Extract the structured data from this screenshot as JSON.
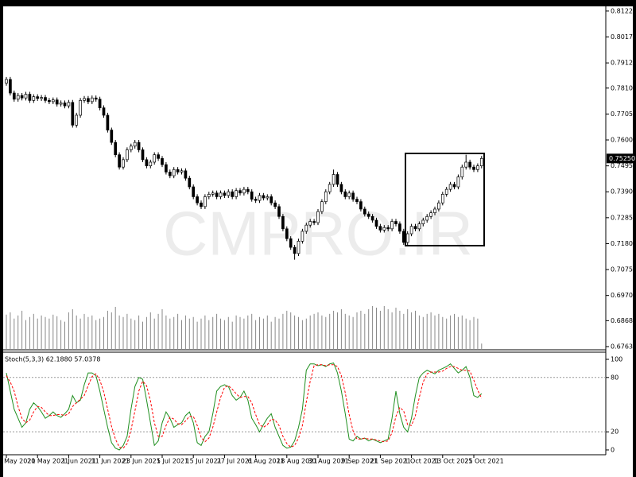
{
  "chart_data": [
    {
      "type": "candlestick",
      "watermark": "CMPRO.IR",
      "price_label": "0.75250",
      "up_color": "#ffffff",
      "down_color": "#000000",
      "volume_color": "#888888",
      "categories": [
        "0 May 2021",
        null,
        null,
        null,
        null,
        null,
        null,
        null,
        "20 May 2021",
        null,
        null,
        null,
        null,
        null,
        null,
        null,
        "1 Jun 2021",
        null,
        null,
        null,
        null,
        null,
        null,
        null,
        "11 Jun 2021",
        null,
        null,
        null,
        null,
        null,
        null,
        null,
        "23 Jun 2021",
        null,
        null,
        null,
        null,
        null,
        null,
        null,
        "5 Jul 2021",
        null,
        null,
        null,
        null,
        null,
        null,
        null,
        "15 Jul 2021",
        null,
        null,
        null,
        null,
        null,
        null,
        null,
        "27 Jul 2021",
        null,
        null,
        null,
        null,
        null,
        null,
        null,
        "6 Aug 2021",
        null,
        null,
        null,
        null,
        null,
        null,
        null,
        "18 Aug 2021",
        null,
        null,
        null,
        null,
        null,
        null,
        null,
        "30 Aug 2021",
        null,
        null,
        null,
        null,
        null,
        null,
        null,
        "9 Sep 2021",
        null,
        null,
        null,
        null,
        null,
        null,
        null,
        "21 Sep 2021",
        null,
        null,
        null,
        null,
        null,
        null,
        null,
        "1 Oct 2021",
        null,
        null,
        null,
        null,
        null,
        null,
        null,
        "13 Oct 2021",
        null,
        null,
        null,
        null,
        null,
        null,
        null,
        "25 Oct 2021",
        null,
        null
      ],
      "open": [
        0.783,
        0.7845,
        0.779,
        0.7765,
        0.778,
        0.777,
        0.7785,
        0.776,
        0.7775,
        0.7768,
        0.7772,
        0.776,
        0.7755,
        0.7762,
        0.7745,
        0.775,
        0.7738,
        0.7752,
        0.766,
        0.77,
        0.776,
        0.7768,
        0.7755,
        0.777,
        0.7765,
        0.773,
        0.77,
        0.764,
        0.759,
        0.754,
        0.749,
        0.752,
        0.756,
        0.7575,
        0.759,
        0.756,
        0.752,
        0.7495,
        0.751,
        0.754,
        0.7525,
        0.75,
        0.747,
        0.7455,
        0.748,
        0.747,
        0.7475,
        0.7445,
        0.741,
        0.737,
        0.7345,
        0.733,
        0.737,
        0.738,
        0.7385,
        0.737,
        0.7385,
        0.7375,
        0.739,
        0.737,
        0.7395,
        0.7385,
        0.74,
        0.739,
        0.736,
        0.7355,
        0.7375,
        0.7365,
        0.737,
        0.7345,
        0.733,
        0.729,
        0.724,
        0.72,
        0.7165,
        0.714,
        0.719,
        0.723,
        0.7255,
        0.727,
        0.7265,
        0.731,
        0.735,
        0.739,
        0.742,
        0.746,
        0.742,
        0.739,
        0.737,
        0.7385,
        0.736,
        0.735,
        0.732,
        0.73,
        0.729,
        0.7275,
        0.725,
        0.7235,
        0.7245,
        0.724,
        0.727,
        0.726,
        0.723,
        0.7185,
        0.722,
        0.725,
        0.724,
        0.726,
        0.7275,
        0.729,
        0.7305,
        0.732,
        0.7345,
        0.738,
        0.74,
        0.742,
        0.741,
        0.745,
        0.749,
        0.751,
        0.749,
        0.748,
        0.7495
      ],
      "high": [
        0.7855,
        0.7855,
        0.78,
        0.779,
        0.779,
        0.7795,
        0.7795,
        0.7785,
        0.7785,
        0.7782,
        0.7782,
        0.777,
        0.7772,
        0.7772,
        0.776,
        0.776,
        0.7762,
        0.7762,
        0.771,
        0.777,
        0.7778,
        0.7778,
        0.778,
        0.778,
        0.7775,
        0.774,
        0.771,
        0.765,
        0.76,
        0.755,
        0.753,
        0.757,
        0.7585,
        0.76,
        0.76,
        0.757,
        0.753,
        0.752,
        0.755,
        0.755,
        0.7535,
        0.751,
        0.748,
        0.749,
        0.749,
        0.7485,
        0.7485,
        0.7455,
        0.742,
        0.738,
        0.7355,
        0.738,
        0.739,
        0.7395,
        0.7395,
        0.7395,
        0.7395,
        0.74,
        0.74,
        0.7405,
        0.7405,
        0.741,
        0.741,
        0.74,
        0.737,
        0.7385,
        0.7385,
        0.738,
        0.738,
        0.7355,
        0.734,
        0.73,
        0.725,
        0.721,
        0.7175,
        0.72,
        0.724,
        0.7265,
        0.728,
        0.728,
        0.732,
        0.736,
        0.74,
        0.743,
        0.748,
        0.747,
        0.743,
        0.74,
        0.7395,
        0.7395,
        0.737,
        0.736,
        0.733,
        0.731,
        0.73,
        0.7285,
        0.726,
        0.7255,
        0.7255,
        0.728,
        0.728,
        0.727,
        0.724,
        0.723,
        0.726,
        0.726,
        0.727,
        0.7285,
        0.73,
        0.7315,
        0.733,
        0.7355,
        0.739,
        0.741,
        0.743,
        0.743,
        0.746,
        0.75,
        0.754,
        0.752,
        0.75,
        0.7505,
        0.7535
      ],
      "low": [
        0.782,
        0.778,
        0.7755,
        0.7755,
        0.776,
        0.776,
        0.775,
        0.775,
        0.7758,
        0.7758,
        0.775,
        0.7745,
        0.7745,
        0.7735,
        0.7735,
        0.7728,
        0.7728,
        0.765,
        0.765,
        0.769,
        0.775,
        0.7745,
        0.7745,
        0.7755,
        0.772,
        0.769,
        0.763,
        0.758,
        0.753,
        0.748,
        0.748,
        0.751,
        0.755,
        0.7565,
        0.755,
        0.751,
        0.7485,
        0.7485,
        0.75,
        0.7515,
        0.749,
        0.746,
        0.7445,
        0.7445,
        0.746,
        0.746,
        0.7435,
        0.74,
        0.736,
        0.7335,
        0.732,
        0.732,
        0.736,
        0.737,
        0.736,
        0.736,
        0.7365,
        0.7365,
        0.736,
        0.736,
        0.7375,
        0.7375,
        0.738,
        0.735,
        0.7345,
        0.7345,
        0.7355,
        0.7355,
        0.7335,
        0.732,
        0.728,
        0.723,
        0.719,
        0.7155,
        0.7115,
        0.713,
        0.718,
        0.722,
        0.7245,
        0.7255,
        0.7255,
        0.73,
        0.734,
        0.738,
        0.741,
        0.741,
        0.738,
        0.736,
        0.736,
        0.735,
        0.734,
        0.731,
        0.729,
        0.728,
        0.7265,
        0.724,
        0.7225,
        0.7225,
        0.723,
        0.723,
        0.725,
        0.722,
        0.7175,
        0.7175,
        0.721,
        0.723,
        0.723,
        0.725,
        0.7265,
        0.728,
        0.7295,
        0.731,
        0.7335,
        0.737,
        0.739,
        0.74,
        0.74,
        0.744,
        0.748,
        0.748,
        0.747,
        0.747,
        0.7485
      ],
      "close": [
        0.7845,
        0.779,
        0.7765,
        0.778,
        0.777,
        0.7785,
        0.776,
        0.7775,
        0.7768,
        0.7772,
        0.776,
        0.7755,
        0.7762,
        0.7745,
        0.775,
        0.7738,
        0.7752,
        0.766,
        0.77,
        0.776,
        0.7768,
        0.7755,
        0.777,
        0.7765,
        0.773,
        0.77,
        0.764,
        0.759,
        0.754,
        0.749,
        0.752,
        0.756,
        0.7575,
        0.759,
        0.756,
        0.752,
        0.7495,
        0.751,
        0.754,
        0.7525,
        0.75,
        0.747,
        0.7455,
        0.748,
        0.747,
        0.7475,
        0.7445,
        0.741,
        0.737,
        0.7345,
        0.733,
        0.737,
        0.738,
        0.7385,
        0.737,
        0.7385,
        0.7375,
        0.739,
        0.737,
        0.7395,
        0.7385,
        0.74,
        0.739,
        0.736,
        0.7355,
        0.7375,
        0.7365,
        0.737,
        0.7345,
        0.733,
        0.729,
        0.724,
        0.72,
        0.7165,
        0.714,
        0.719,
        0.723,
        0.7255,
        0.727,
        0.7265,
        0.731,
        0.735,
        0.739,
        0.742,
        0.746,
        0.742,
        0.739,
        0.737,
        0.7385,
        0.736,
        0.735,
        0.732,
        0.73,
        0.729,
        0.7275,
        0.725,
        0.7235,
        0.7245,
        0.724,
        0.727,
        0.726,
        0.723,
        0.7185,
        0.722,
        0.725,
        0.724,
        0.726,
        0.7275,
        0.729,
        0.7305,
        0.732,
        0.7345,
        0.738,
        0.74,
        0.742,
        0.741,
        0.745,
        0.749,
        0.751,
        0.749,
        0.748,
        0.7495,
        0.7525
      ],
      "volume": [
        45,
        48,
        40,
        44,
        50,
        38,
        42,
        46,
        40,
        44,
        42,
        40,
        45,
        43,
        38,
        36,
        48,
        52,
        44,
        40,
        46,
        42,
        44,
        38,
        40,
        42,
        50,
        48,
        55,
        44,
        42,
        46,
        40,
        38,
        44,
        36,
        42,
        48,
        40,
        46,
        52,
        44,
        40,
        42,
        46,
        38,
        44,
        40,
        42,
        36,
        40,
        44,
        38,
        42,
        46,
        40,
        38,
        42,
        36,
        44,
        42,
        40,
        44,
        46,
        38,
        42,
        40,
        44,
        36,
        42,
        40,
        46,
        50,
        48,
        44,
        42,
        38,
        40,
        44,
        46,
        48,
        44,
        42,
        46,
        50,
        48,
        52,
        46,
        44,
        42,
        48,
        50,
        46,
        52,
        56,
        54,
        50,
        56,
        52,
        48,
        54,
        50,
        46,
        52,
        48,
        50,
        44,
        42,
        46,
        48,
        44,
        46,
        42,
        40,
        44,
        46,
        42,
        44,
        40,
        38,
        42,
        40,
        8
      ],
      "ylim": [
        0.675,
        0.8141
      ],
      "yticks": [
        {
          "value": 0.8122,
          "label": "0.81220"
        },
        {
          "value": 0.8017,
          "label": "0.80170"
        },
        {
          "value": 0.7912,
          "label": "0.79120"
        },
        {
          "value": 0.781,
          "label": "0.78100"
        },
        {
          "value": 0.7705,
          "label": "0.77050"
        },
        {
          "value": 0.76,
          "label": "0.76000"
        },
        {
          "value": 0.7495,
          "label": "0.74950"
        },
        {
          "value": 0.739,
          "label": "0.73900"
        },
        {
          "value": 0.7285,
          "label": "0.72850"
        },
        {
          "value": 0.718,
          "label": "0.71800"
        },
        {
          "value": 0.7075,
          "label": "0.70750"
        },
        {
          "value": 0.697,
          "label": "0.69700"
        },
        {
          "value": 0.6868,
          "label": "0.68680"
        },
        {
          "value": 0.6763,
          "label": "0.67630"
        }
      ]
    },
    {
      "type": "line",
      "title": "Stoch(5,3,3) 62.1880 57.0378",
      "series": [
        {
          "color": "#1f8f1f",
          "dashed": false,
          "values": [
            85,
            65,
            45,
            35,
            25,
            30,
            45,
            52,
            48,
            42,
            35,
            38,
            42,
            38,
            36,
            40,
            45,
            60,
            52,
            55,
            72,
            85,
            85,
            82,
            65,
            45,
            25,
            8,
            2,
            0,
            5,
            15,
            45,
            70,
            80,
            78,
            55,
            30,
            5,
            10,
            30,
            42,
            35,
            25,
            28,
            30,
            38,
            42,
            30,
            8,
            5,
            15,
            20,
            40,
            65,
            70,
            72,
            70,
            60,
            55,
            58,
            65,
            55,
            35,
            28,
            20,
            28,
            35,
            40,
            25,
            15,
            5,
            2,
            3,
            10,
            25,
            45,
            88,
            95,
            95,
            93,
            94,
            92,
            95,
            96,
            85,
            65,
            40,
            12,
            10,
            15,
            12,
            13,
            10,
            12,
            10,
            8,
            10,
            12,
            35,
            65,
            40,
            25,
            20,
            35,
            60,
            80,
            85,
            88,
            86,
            84,
            88,
            90,
            92,
            95,
            90,
            85,
            88,
            92,
            80,
            60,
            58,
            62.188
          ]
        },
        {
          "color": "#ff0000",
          "dashed": true,
          "values": [
            82,
            75,
            65,
            48,
            35,
            30,
            33,
            42,
            48,
            47,
            42,
            38,
            38,
            39,
            39,
            38,
            40,
            48,
            52,
            56,
            60,
            71,
            81,
            84,
            77,
            64,
            45,
            26,
            12,
            3,
            2,
            7,
            22,
            43,
            65,
            76,
            71,
            54,
            30,
            15,
            15,
            27,
            36,
            34,
            29,
            28,
            32,
            37,
            37,
            27,
            14,
            9,
            13,
            25,
            42,
            58,
            69,
            71,
            67,
            62,
            58,
            59,
            59,
            52,
            39,
            28,
            25,
            28,
            34,
            33,
            27,
            15,
            7,
            3,
            5,
            13,
            27,
            53,
            76,
            93,
            94,
            94,
            93,
            94,
            94,
            92,
            82,
            63,
            39,
            21,
            12,
            12,
            13,
            12,
            12,
            11,
            10,
            9,
            10,
            19,
            37,
            47,
            43,
            28,
            27,
            38,
            58,
            75,
            84,
            86,
            86,
            86,
            87,
            90,
            92,
            92,
            90,
            88,
            88,
            87,
            77,
            66,
            57.0378
          ]
        }
      ],
      "levels": [
        80,
        20
      ],
      "ylim": [
        -5.3,
        107.9
      ],
      "yticks": [
        100,
        80,
        20,
        0
      ]
    }
  ]
}
